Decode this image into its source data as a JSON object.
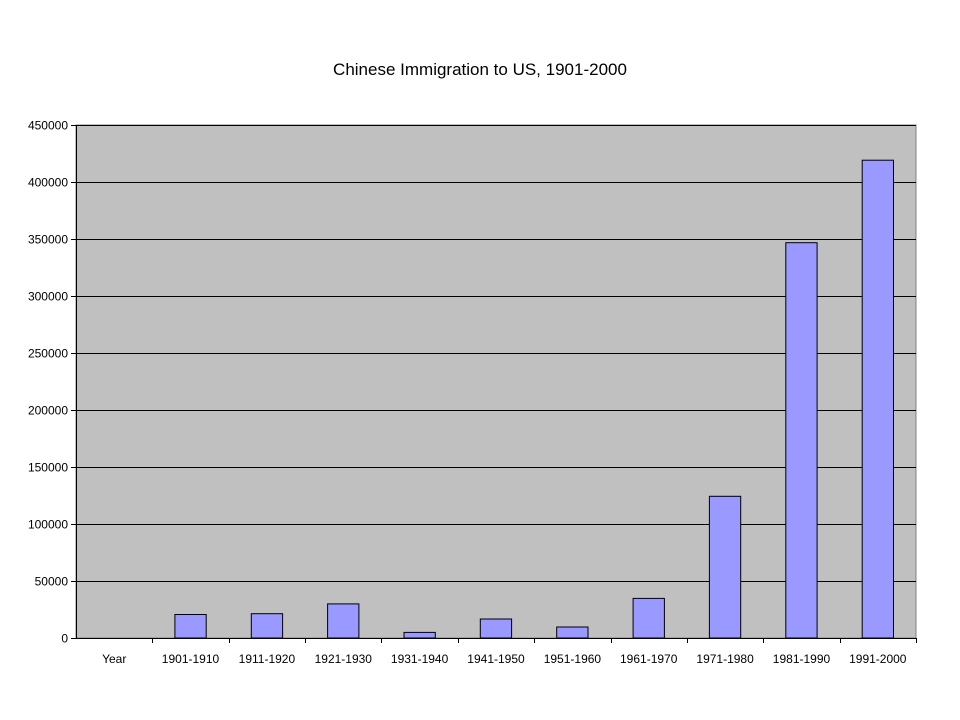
{
  "chart_data": {
    "type": "bar",
    "title": "Chinese Immigration to US, 1901-2000",
    "categories": [
      "Year",
      "1901-1910",
      "1911-1920",
      "1921-1930",
      "1931-1940",
      "1941-1950",
      "1951-1960",
      "1961-1970",
      "1971-1980",
      "1981-1990",
      "1991-2000"
    ],
    "values": [
      0,
      20605,
      21278,
      29907,
      4928,
      16709,
      9657,
      34764,
      124326,
      346747,
      419114
    ],
    "ylim": [
      0,
      450000
    ],
    "yticks": [
      "0",
      "50000",
      "100000",
      "150000",
      "200000",
      "250000",
      "300000",
      "350000",
      "400000",
      "450000"
    ],
    "grid": true,
    "legend": "none",
    "colors": {
      "bar_fill": "#9999ff",
      "plot_bg": "#c0c0c0",
      "grid": "#000000"
    }
  }
}
